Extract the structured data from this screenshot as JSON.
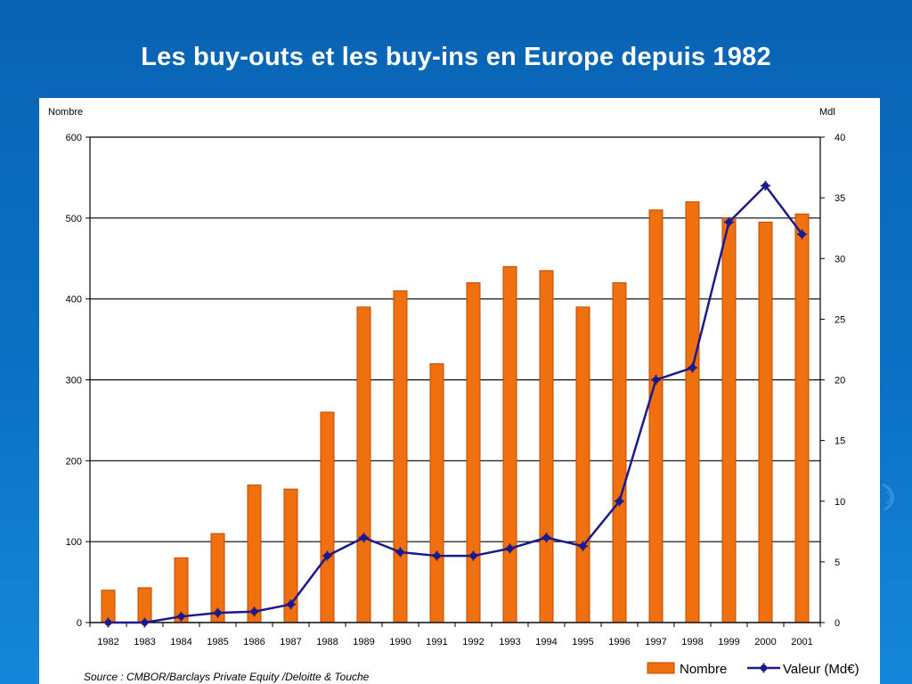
{
  "slide": {
    "title": "Les buy-outs et les buy-ins en Europe depuis 1982"
  },
  "chart_data": {
    "type": "bar",
    "title": "Les buy-outs et les buy-ins en Europe depuis 1982",
    "left_axis_label": "Nombre",
    "right_axis_label": "Mdl",
    "categories": [
      "1982",
      "1983",
      "1984",
      "1985",
      "1986",
      "1987",
      "1988",
      "1989",
      "1990",
      "1991",
      "1992",
      "1993",
      "1994",
      "1995",
      "1996",
      "1997",
      "1998",
      "1999",
      "2000",
      "2001"
    ],
    "left_ylim": [
      0,
      600
    ],
    "left_yticks": [
      0,
      100,
      200,
      300,
      400,
      500,
      600
    ],
    "right_ylim": [
      0,
      40
    ],
    "right_yticks": [
      0,
      5,
      10,
      15,
      20,
      25,
      30,
      35,
      40
    ],
    "grid": true,
    "legend_position": "bottom-right",
    "series": [
      {
        "name": "Nombre",
        "type": "bar",
        "axis": "left",
        "color": "#f07010",
        "values": [
          40,
          43,
          80,
          110,
          170,
          165,
          260,
          390,
          410,
          320,
          420,
          440,
          435,
          390,
          420,
          510,
          520,
          500,
          495,
          505
        ]
      },
      {
        "name": "Valeur (Md€)",
        "type": "line",
        "axis": "right",
        "color": "#1a1a8c",
        "values": [
          0,
          0,
          0.5,
          0.8,
          0.9,
          1.5,
          5.5,
          7,
          5.8,
          5.5,
          5.5,
          6.1,
          7,
          6.3,
          10,
          20,
          21,
          33,
          36,
          32
        ]
      }
    ],
    "source": "Source : CMBOR/Barclays Private Equity /Deloitte & Touche"
  }
}
